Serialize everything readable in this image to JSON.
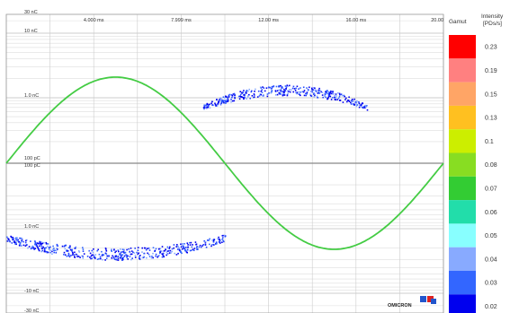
{
  "chart_data": {
    "type": "scatter",
    "title": "",
    "x_tick_labels": [
      "4.000 ms",
      "7.999 ms",
      "12.00 ms",
      "16.00 ms",
      "20.00"
    ],
    "xlim": [
      0,
      20
    ],
    "x_ticks": [
      4,
      8,
      12,
      16,
      20
    ],
    "y_scale": "symlog",
    "y_tick_labels": [
      {
        "label": "30 nC",
        "value": 30
      },
      {
        "label": "10 nC",
        "value": 10
      },
      {
        "label": "1.0 nC",
        "value": 1
      },
      {
        "label": "100 pC",
        "value": 0.1
      },
      {
        "label": "100 pC",
        "value": -0.1
      },
      {
        "label": "1.0 nC",
        "value": -1
      },
      {
        "label": "-10 nC",
        "value": -10
      },
      {
        "label": "-30 nC",
        "value": -30
      }
    ],
    "ylim": [
      -30,
      30
    ],
    "grid": true,
    "sine_reference": {
      "color": "#44cc44",
      "period_ms": 20,
      "peak_at_ms": 5
    },
    "clusters": [
      {
        "phase_ms": [
          9.0,
          16.5
        ],
        "level_nC": [
          0.5,
          1.6
        ],
        "note": "positive cluster"
      },
      {
        "phase_ms": [
          0.0,
          10.0
        ],
        "level_nC": [
          -3.0,
          -0.9
        ],
        "note": "negative cluster"
      }
    ],
    "legend": {
      "title": "Gamut",
      "subtitle_line1": "Intensity",
      "subtitle_line2": "[PDs/s]",
      "placement": "right",
      "entries": [
        {
          "value": "0.23",
          "color": "#ff0000"
        },
        {
          "value": "0.19",
          "color": "#ff8080"
        },
        {
          "value": "0.15",
          "color": "#ffa566"
        },
        {
          "value": "0.13",
          "color": "#ffc020"
        },
        {
          "value": "0.1",
          "color": "#ccee00"
        },
        {
          "value": "0.08",
          "color": "#88dd22"
        },
        {
          "value": "0.07",
          "color": "#33cc33"
        },
        {
          "value": "0.06",
          "color": "#22ddaa"
        },
        {
          "value": "0.05",
          "color": "#88ffff"
        },
        {
          "value": "0.04",
          "color": "#88aaff"
        },
        {
          "value": "0.03",
          "color": "#3366ff"
        },
        {
          "value": "0.02",
          "color": "#0000ee"
        }
      ]
    }
  },
  "brand": "OMICRON"
}
